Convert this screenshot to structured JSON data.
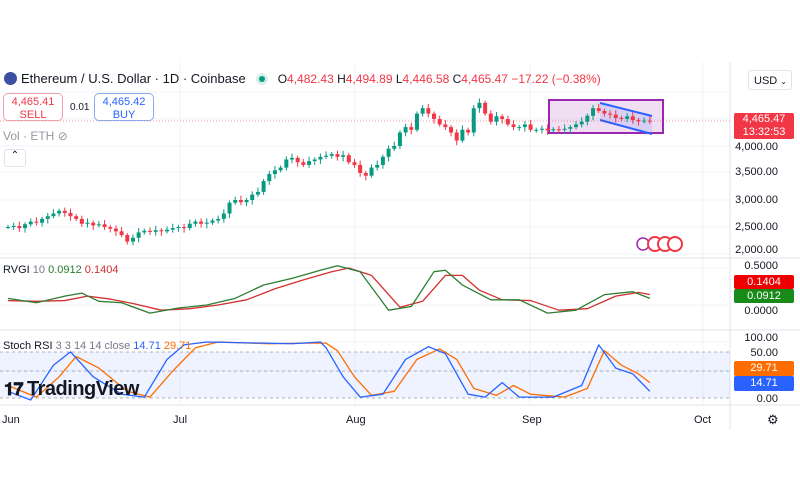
{
  "header": {
    "symbol": "Ethereum / U.S. Dollar · 1D · Coinbase",
    "o_label": "O",
    "o": "4,482.43",
    "h_label": "H",
    "h": "4,494.89",
    "l_label": "L",
    "l": "4,446.58",
    "c_label": "C",
    "c": "4,465.47",
    "change": "−17.22 (−0.38%)"
  },
  "trade": {
    "sell_price": "4,465.41",
    "sell_label": "SELL",
    "spread": "0.01",
    "buy_price": "4,465.42",
    "buy_label": "BUY"
  },
  "volume_label": "Vol · ETH",
  "currency": "USD",
  "price_tag": {
    "price": "4,465.47",
    "countdown": "13:32:53"
  },
  "price_axis": [
    "4,000.00",
    "3,500.00",
    "3,000.00",
    "2,500.00",
    "2,000.00"
  ],
  "rvgi": {
    "name": "RVGI",
    "param": "10",
    "v1": "0.0912",
    "v2": "0.1404",
    "axis": "0.5000",
    "axis_zero": "0.0000"
  },
  "stoch": {
    "name": "Stoch RSI",
    "params": "3 3 14 14 close",
    "k": "14.71",
    "d": "29.71",
    "axis_top": "100.00",
    "axis_mid": "50.00",
    "axis_bottom": "0.00"
  },
  "months": [
    "Jun",
    "Jul",
    "Aug",
    "Sep",
    "Oct"
  ],
  "logo": "TradingView",
  "colors": {
    "up": "#089981",
    "down": "#f23645",
    "blue": "#2962ff",
    "orange": "#ff6d00",
    "rvgi_green": "#2e7d32",
    "rvgi_red": "#d32f2f",
    "box": "#9c27b0"
  },
  "chart_data": {
    "type": "candlestick",
    "start": "Jun 1",
    "interval": "1D",
    "closes": [
      2500,
      2520,
      2480,
      2550,
      2600,
      2580,
      2650,
      2700,
      2750,
      2800,
      2760,
      2700,
      2650,
      2560,
      2580,
      2530,
      2550,
      2500,
      2470,
      2420,
      2350,
      2230,
      2300,
      2400,
      2430,
      2410,
      2440,
      2420,
      2450,
      2480,
      2500,
      2480,
      2560,
      2600,
      2560,
      2580,
      2620,
      2650,
      2750,
      2950,
      3000,
      2960,
      3000,
      3100,
      3150,
      3350,
      3480,
      3550,
      3600,
      3750,
      3780,
      3700,
      3650,
      3720,
      3750,
      3800,
      3820,
      3850,
      3800,
      3830,
      3700,
      3650,
      3500,
      3450,
      3600,
      3650,
      3800,
      3950,
      4000,
      4250,
      4350,
      4300,
      4600,
      4700,
      4600,
      4500,
      4400,
      4350,
      4250,
      4100,
      4300,
      4250,
      4700,
      4800,
      4600,
      4450,
      4550,
      4500,
      4400,
      4350,
      4350,
      4400,
      4300,
      4300,
      4320,
      4290,
      4310,
      4300,
      4320,
      4350,
      4400,
      4450,
      4560,
      4700,
      4650,
      4600,
      4580,
      4520,
      4500,
      4550,
      4480,
      4460,
      4470,
      4465
    ],
    "price_range": [
      2000,
      4800
    ],
    "rvgi_signal": [
      [
        0,
        0.09
      ],
      [
        5,
        0.03
      ],
      [
        10,
        0.12
      ],
      [
        13,
        0.16
      ],
      [
        16,
        0.05
      ],
      [
        20,
        0.03
      ],
      [
        25,
        -0.11
      ],
      [
        30,
        -0.04
      ],
      [
        35,
        0.0
      ],
      [
        40,
        0.09
      ],
      [
        45,
        0.27
      ],
      [
        50,
        0.36
      ],
      [
        55,
        0.47
      ],
      [
        58,
        0.53
      ],
      [
        62,
        0.45
      ],
      [
        67,
        -0.07
      ],
      [
        71,
        -0.02
      ],
      [
        75,
        0.45
      ],
      [
        77,
        0.47
      ],
      [
        80,
        0.27
      ],
      [
        85,
        0.07
      ],
      [
        90,
        0.07
      ],
      [
        95,
        -0.11
      ],
      [
        100,
        -0.07
      ],
      [
        105,
        0.14
      ],
      [
        110,
        0.18
      ],
      [
        113,
        0.09
      ]
    ],
    "rvgi_line": [
      [
        0,
        0.06
      ],
      [
        5,
        0.05
      ],
      [
        10,
        0.06
      ],
      [
        14,
        0.12
      ],
      [
        18,
        0.08
      ],
      [
        22,
        0.02
      ],
      [
        27,
        -0.07
      ],
      [
        32,
        -0.05
      ],
      [
        37,
        0.0
      ],
      [
        42,
        0.07
      ],
      [
        47,
        0.22
      ],
      [
        52,
        0.34
      ],
      [
        57,
        0.45
      ],
      [
        60,
        0.5
      ],
      [
        64,
        0.4
      ],
      [
        69,
        -0.03
      ],
      [
        73,
        0.05
      ],
      [
        77,
        0.4
      ],
      [
        80,
        0.4
      ],
      [
        83,
        0.2
      ],
      [
        87,
        0.07
      ],
      [
        92,
        0.06
      ],
      [
        97,
        -0.07
      ],
      [
        102,
        -0.05
      ],
      [
        107,
        0.12
      ],
      [
        111,
        0.17
      ],
      [
        113,
        0.14
      ]
    ],
    "stoch_k": [
      [
        0,
        15
      ],
      [
        4,
        0
      ],
      [
        8,
        60
      ],
      [
        11,
        83
      ],
      [
        15,
        40
      ],
      [
        20,
        10
      ],
      [
        24,
        5
      ],
      [
        28,
        70
      ],
      [
        31,
        95
      ],
      [
        35,
        100
      ],
      [
        45,
        98
      ],
      [
        50,
        97
      ],
      [
        55,
        100
      ],
      [
        56,
        90
      ],
      [
        59,
        40
      ],
      [
        62,
        5
      ],
      [
        66,
        10
      ],
      [
        70,
        70
      ],
      [
        74,
        92
      ],
      [
        77,
        80
      ],
      [
        81,
        10
      ],
      [
        84,
        5
      ],
      [
        87,
        30
      ],
      [
        90,
        5
      ],
      [
        96,
        5
      ],
      [
        101,
        25
      ],
      [
        104,
        95
      ],
      [
        107,
        55
      ],
      [
        110,
        45
      ],
      [
        113,
        15
      ]
    ],
    "stoch_d": [
      [
        0,
        25
      ],
      [
        5,
        5
      ],
      [
        9,
        40
      ],
      [
        12,
        75
      ],
      [
        16,
        55
      ],
      [
        21,
        15
      ],
      [
        25,
        5
      ],
      [
        29,
        50
      ],
      [
        33,
        90
      ],
      [
        37,
        100
      ],
      [
        46,
        97
      ],
      [
        52,
        98
      ],
      [
        56,
        98
      ],
      [
        58,
        85
      ],
      [
        61,
        40
      ],
      [
        64,
        8
      ],
      [
        68,
        15
      ],
      [
        72,
        70
      ],
      [
        76,
        88
      ],
      [
        79,
        70
      ],
      [
        82,
        20
      ],
      [
        86,
        8
      ],
      [
        89,
        25
      ],
      [
        92,
        10
      ],
      [
        98,
        5
      ],
      [
        102,
        20
      ],
      [
        105,
        85
      ],
      [
        108,
        60
      ],
      [
        111,
        45
      ],
      [
        113,
        30
      ]
    ]
  }
}
